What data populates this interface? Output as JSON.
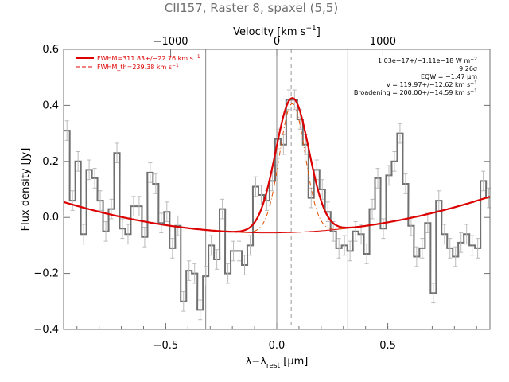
{
  "chart_data": {
    "type": "line",
    "title": "CII157, Raster 8, spaxel (5,5)",
    "xlabel": "λ−λ",
    "xlabel_sub": "rest",
    "xlabel_unit": " [μm]",
    "ylabel": "Flux density [Jy]",
    "top_axis_label": "Velocity [km s",
    "top_axis_label_exp": "−1",
    "top_axis_label_close": "]",
    "xlim": [
      -0.96,
      0.96
    ],
    "ylim": [
      -0.4,
      0.6
    ],
    "xticks": [
      -0.5,
      0.0,
      0.5
    ],
    "xtick_labels": [
      "−0.5",
      "0.0",
      "0.5"
    ],
    "yticks": [
      -0.4,
      -0.2,
      0.0,
      0.2,
      0.4,
      0.6
    ],
    "ytick_labels": [
      "−0.4",
      "−0.2",
      "0.0",
      "0.2",
      "0.4",
      "0.6"
    ],
    "top_ticks_x": [
      -0.478,
      0.0,
      0.478
    ],
    "top_tick_labels": [
      "−1000",
      "0",
      "1000"
    ],
    "vlines_x": [
      -0.32,
      0.0,
      0.32
    ],
    "center_line_x": 0.065,
    "grid": false,
    "legend_position": "top-left",
    "legend": [
      {
        "label": "FWHM=311.83+/−22.76 km s",
        "exp": "−1",
        "style": "solid",
        "color": "#dd0000"
      },
      {
        "label": "FWHM_th=239.38 km s",
        "exp": "−1",
        "style": "dashed",
        "color": "#dd0000"
      }
    ],
    "annotations": [
      {
        "text": "1.03e−17+/−1.11e−18 W m",
        "exp": "−2"
      },
      {
        "text": "9.26σ",
        "exp": ""
      },
      {
        "text": "EQW = −1.47 μm",
        "exp": ""
      },
      {
        "text": "v = 119.97+/−12.62 km s",
        "exp": "−1"
      },
      {
        "text": "Broadening = 200.00+/−14.59 km s",
        "exp": "−1"
      }
    ],
    "series": [
      {
        "name": "spectrum",
        "kind": "step",
        "color": "#707070",
        "step_width": 0.0255,
        "error": 0.035,
        "x": [
          -0.945,
          -0.92,
          -0.895,
          -0.87,
          -0.845,
          -0.82,
          -0.795,
          -0.77,
          -0.745,
          -0.72,
          -0.695,
          -0.67,
          -0.645,
          -0.62,
          -0.595,
          -0.57,
          -0.545,
          -0.52,
          -0.495,
          -0.47,
          -0.445,
          -0.42,
          -0.395,
          -0.37,
          -0.345,
          -0.32,
          -0.295,
          -0.27,
          -0.245,
          -0.22,
          -0.195,
          -0.17,
          -0.145,
          -0.12,
          -0.095,
          -0.07,
          -0.045,
          -0.02,
          0.005,
          0.03,
          0.055,
          0.08,
          0.105,
          0.13,
          0.155,
          0.18,
          0.205,
          0.23,
          0.255,
          0.28,
          0.305,
          0.33,
          0.355,
          0.38,
          0.405,
          0.43,
          0.455,
          0.48,
          0.505,
          0.53,
          0.555,
          0.58,
          0.605,
          0.63,
          0.655,
          0.68,
          0.705,
          0.73,
          0.755,
          0.78,
          0.805,
          0.83,
          0.855,
          0.88,
          0.905,
          0.93,
          0.955
        ],
        "y": [
          0.31,
          0.06,
          0.2,
          -0.06,
          0.17,
          0.14,
          0.06,
          -0.05,
          0.03,
          0.23,
          -0.04,
          -0.06,
          0.04,
          0.04,
          -0.07,
          0.16,
          0.12,
          -0.02,
          0.02,
          -0.11,
          -0.03,
          -0.3,
          -0.19,
          -0.2,
          -0.33,
          -0.21,
          -0.1,
          -0.15,
          0.03,
          -0.2,
          -0.12,
          -0.12,
          -0.17,
          -0.1,
          0.11,
          0.08,
          0.06,
          0.13,
          0.28,
          0.26,
          0.42,
          0.42,
          0.35,
          0.26,
          0.07,
          0.17,
          0.1,
          0.02,
          -0.05,
          -0.11,
          -0.1,
          -0.12,
          -0.05,
          -0.06,
          -0.13,
          0.03,
          0.14,
          -0.04,
          0.15,
          0.2,
          0.3,
          0.12,
          -0.03,
          -0.14,
          -0.11,
          -0.02,
          -0.27,
          0.06,
          -0.06,
          -0.11,
          -0.14,
          -0.09,
          -0.06,
          -0.1,
          -0.11,
          0.13,
          0.07
        ]
      },
      {
        "name": "FWHM=311.83+/−22.76 km s−1",
        "kind": "line",
        "color": "#dd0000",
        "baseline": {
          "c0": -0.055,
          "c1": 0.01,
          "c2": 0.13
        },
        "gauss": {
          "amp": 0.48,
          "center": 0.07,
          "sigma": 0.075
        }
      },
      {
        "name": "FWHM_th=239.38 km s−1",
        "kind": "dashed",
        "color": "#e05000",
        "gauss": {
          "amp": 0.46,
          "center": 0.07,
          "sigma": 0.0575
        }
      }
    ]
  }
}
